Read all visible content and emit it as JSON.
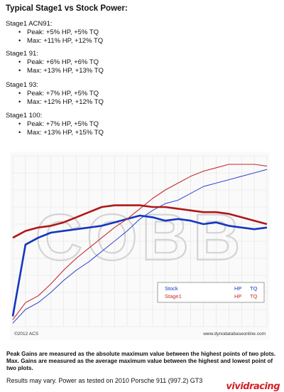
{
  "header": {
    "title": "Typical Stage1 vs Stock Power:"
  },
  "groups": [
    {
      "name": "Stage1 ACN91:",
      "items": [
        "Peak: +5% HP, +5% TQ",
        "Max: +11% HP, +12% TQ"
      ]
    },
    {
      "name": "Stage1 91:",
      "items": [
        "Peak: +6% HP, +6% TQ",
        "Max: +13% HP, +13% TQ"
      ]
    },
    {
      "name": "Stage1 93:",
      "items": [
        "Peak: +7% HP, +5% TQ",
        "Max: +12% HP, +12% TQ"
      ]
    },
    {
      "name": "Stage1 100:",
      "items": [
        "Peak: +7% HP, +5% TQ",
        "Max: +13% HP, +15% TQ"
      ]
    }
  ],
  "chart_data": {
    "type": "line",
    "x": [
      0,
      5,
      10,
      15,
      20,
      25,
      30,
      35,
      40,
      45,
      50,
      55,
      60,
      65,
      70,
      75,
      80,
      85,
      90,
      95,
      100
    ],
    "series": [
      {
        "name": "Stock",
        "measure": "HP",
        "color": "#3d4fd0",
        "values": [
          2,
          10,
          14,
          20,
          27,
          33,
          38,
          44,
          50,
          56,
          63,
          68,
          72,
          74,
          78,
          82,
          84,
          86,
          88,
          90,
          92
        ]
      },
      {
        "name": "Stock",
        "measure": "TQ",
        "color": "#1535c2",
        "values": [
          6,
          48,
          52,
          55,
          56,
          57,
          58,
          59,
          61,
          63,
          65,
          64,
          62,
          63,
          62,
          60,
          61,
          59,
          58,
          57,
          58
        ]
      },
      {
        "name": "Stage1",
        "measure": "HP",
        "color": "#c62b2b",
        "values": [
          4,
          14,
          18,
          25,
          33,
          40,
          46,
          52,
          58,
          63,
          69,
          75,
          80,
          84,
          88,
          91,
          93,
          95,
          95,
          95,
          94
        ]
      },
      {
        "name": "Stage1",
        "measure": "TQ",
        "color": "#b01818",
        "values": [
          52,
          56,
          58,
          59,
          61,
          64,
          67,
          70,
          71,
          71,
          71,
          70,
          70,
          69,
          68,
          67,
          67,
          66,
          64,
          62,
          60
        ]
      }
    ],
    "ylim": [
      0,
      100
    ],
    "legend": {
      "position": "lower-right",
      "rows": [
        {
          "label": "Stock",
          "hp": "HP",
          "tq": "TQ",
          "color": "#1535c2"
        },
        {
          "label": "Stage1",
          "hp": "HP",
          "tq": "TQ",
          "color": "#c62b2b"
        }
      ]
    },
    "watermark": "COBB",
    "copyright": "©2012 ACS",
    "source": "www.dynodatabaseonline.com",
    "grid": true
  },
  "notes": {
    "peak": "Peak Gains are measured as the absolute maximum value between the highest points of two plots.",
    "max": "Max. Gains are measured as the average maximum value between the highest and lowest point of two plots."
  },
  "footer": {
    "disclaimer": "Results may vary. Power as tested on 2010 Porsche 911 (997.2) GT3",
    "brand": "vividracing"
  }
}
